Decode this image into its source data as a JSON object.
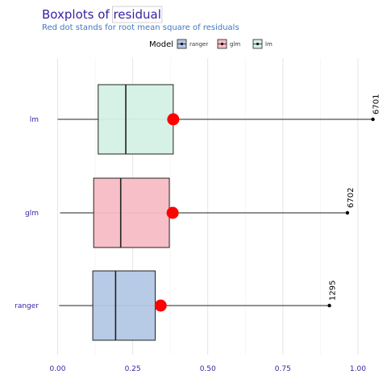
{
  "chart_data": {
    "type": "boxplot",
    "title": "Boxplots of ",
    "title_var": "residual",
    "subtitle": "Red dot stands for root mean square of residuals",
    "xlim": [
      0,
      1.07
    ],
    "x_ticks": [
      0.0,
      0.25,
      0.5,
      0.75,
      1.0
    ],
    "x_tick_labels": [
      "0.00",
      "0.25",
      "0.50",
      "0.75",
      "1.00"
    ],
    "grid": true,
    "legend_placement": "top-center",
    "legend": {
      "title": "Model",
      "entries": [
        {
          "label": "ranger",
          "color": "#b3c7e5"
        },
        {
          "label": "glm",
          "color": "#f7bcc4"
        },
        {
          "label": "lm",
          "color": "#d4f0e4"
        }
      ]
    },
    "series": [
      {
        "name": "lm",
        "fill": "#d4f0e4",
        "whisker_low": 0.0,
        "q1": 0.135,
        "median": 0.227,
        "q3": 0.385,
        "whisker_high": 1.05,
        "rmse": 0.385,
        "outlier_x": 1.05,
        "outlier_label": "6701"
      },
      {
        "name": "glm",
        "fill": "#f7bcc4",
        "whisker_low": 0.008,
        "q1": 0.12,
        "median": 0.21,
        "q3": 0.372,
        "whisker_high": 0.965,
        "rmse": 0.383,
        "outlier_x": 0.965,
        "outlier_label": "6702"
      },
      {
        "name": "ranger",
        "fill": "#b3c7e5",
        "whisker_low": 0.005,
        "q1": 0.117,
        "median": 0.193,
        "q3": 0.325,
        "whisker_high": 0.905,
        "rmse": 0.343,
        "outlier_x": 0.905,
        "outlier_label": "1295"
      }
    ],
    "colors": {
      "title": "#371ea3",
      "subtitle": "#4378bf",
      "rmse_dot": "#ff0000",
      "grid": "#e5e5e5",
      "box_stroke": "#222222"
    }
  }
}
